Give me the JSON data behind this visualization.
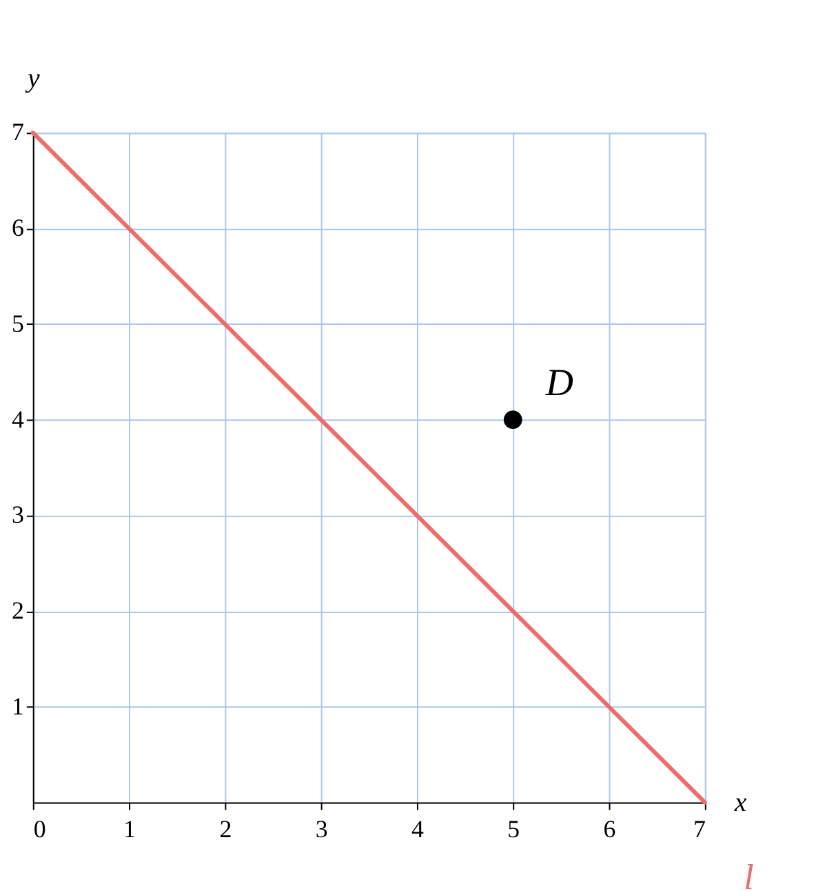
{
  "chart_data": {
    "type": "line",
    "xlabel": "x",
    "ylabel": "y",
    "xlim": [
      0,
      7
    ],
    "ylim": [
      0,
      7
    ],
    "xticks": [
      0,
      1,
      2,
      3,
      4,
      5,
      6,
      7
    ],
    "yticks": [
      1,
      2,
      3,
      4,
      5,
      6,
      7
    ],
    "grid": true,
    "legend": false,
    "line_style": "solid",
    "series": [
      {
        "name": "l",
        "color": "#f26b6b",
        "x": [
          0,
          7
        ],
        "values": [
          7,
          0
        ],
        "marker": "none"
      },
      {
        "name": "D",
        "type": "scatter",
        "color": "#000000",
        "x": [
          5
        ],
        "values": [
          4
        ],
        "marker": "circle"
      }
    ]
  }
}
